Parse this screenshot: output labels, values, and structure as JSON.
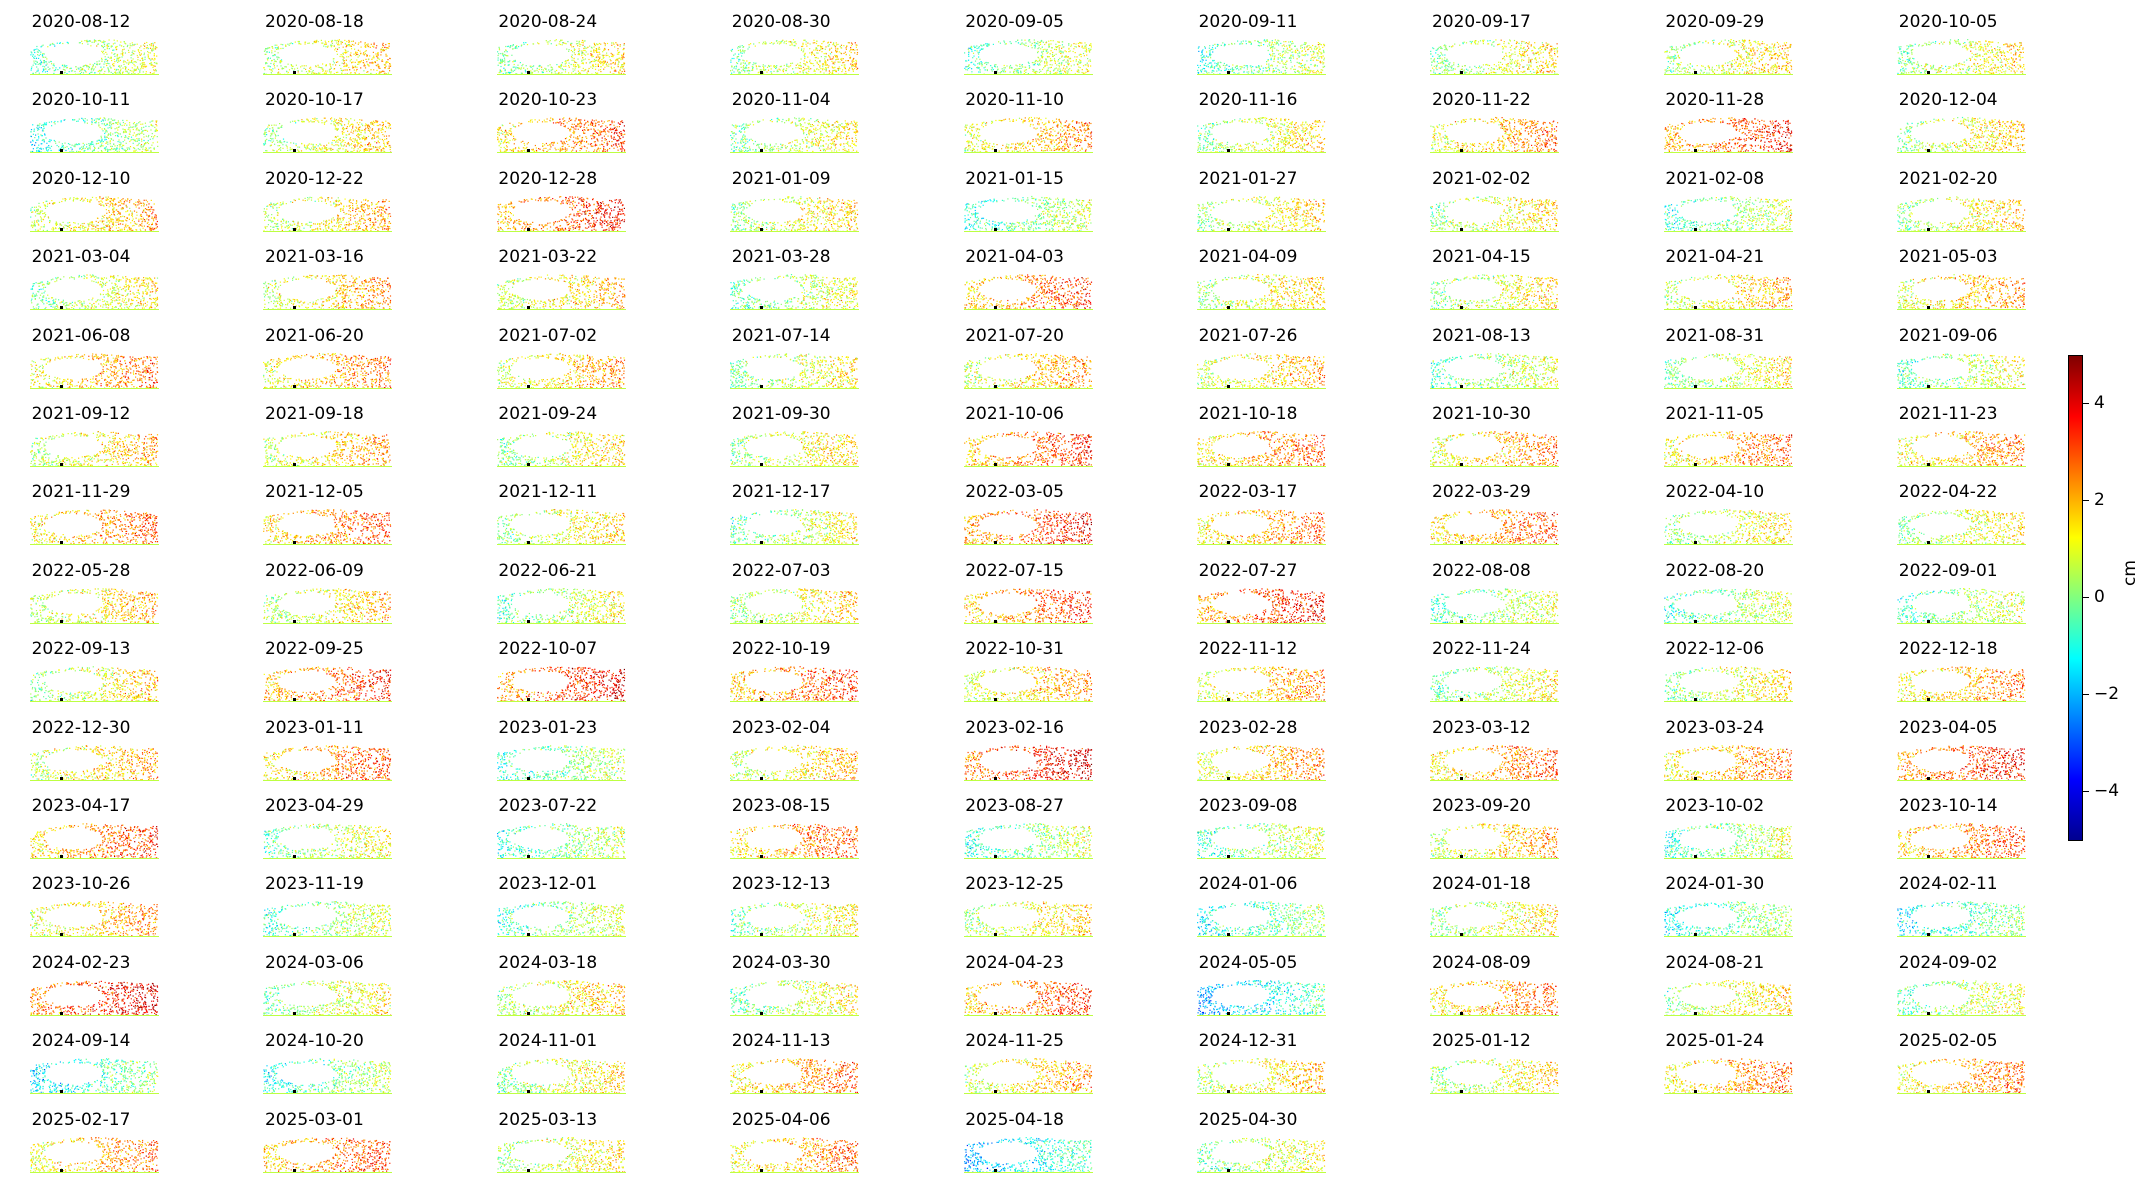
{
  "chart_data": {
    "type": "heatmap",
    "unit": "cm",
    "color_scale": "jet",
    "clim": [
      -5,
      5
    ],
    "colorbar_ticks": [
      4,
      2,
      0,
      -2,
      -4
    ],
    "colorbar_tick_labels": [
      "4",
      "2",
      "0",
      "−2",
      "−4"
    ],
    "colorbar_label": "cm",
    "panels": [
      {
        "date": "2020-08-12",
        "mean_cm": 0.3
      },
      {
        "date": "2020-08-18",
        "mean_cm": 1.2
      },
      {
        "date": "2020-08-24",
        "mean_cm": 0.7
      },
      {
        "date": "2020-08-30",
        "mean_cm": 0.8
      },
      {
        "date": "2020-09-05",
        "mean_cm": 0.3
      },
      {
        "date": "2020-09-11",
        "mean_cm": 0.1
      },
      {
        "date": "2020-09-17",
        "mean_cm": 0.8
      },
      {
        "date": "2020-09-29",
        "mean_cm": 1.0
      },
      {
        "date": "2020-10-05",
        "mean_cm": 0.8
      },
      {
        "date": "2020-10-11",
        "mean_cm": -0.2
      },
      {
        "date": "2020-10-17",
        "mean_cm": 1.1
      },
      {
        "date": "2020-10-23",
        "mean_cm": 2.3
      },
      {
        "date": "2020-11-04",
        "mean_cm": 0.7
      },
      {
        "date": "2020-11-10",
        "mean_cm": 1.7
      },
      {
        "date": "2020-11-16",
        "mean_cm": 0.9
      },
      {
        "date": "2020-11-22",
        "mean_cm": 1.9
      },
      {
        "date": "2020-11-28",
        "mean_cm": 2.8
      },
      {
        "date": "2020-12-04",
        "mean_cm": 1.0
      },
      {
        "date": "2020-12-10",
        "mean_cm": 1.5
      },
      {
        "date": "2020-12-22",
        "mean_cm": 1.4
      },
      {
        "date": "2020-12-28",
        "mean_cm": 2.8
      },
      {
        "date": "2021-01-09",
        "mean_cm": 1.0
      },
      {
        "date": "2021-01-15",
        "mean_cm": 0.0
      },
      {
        "date": "2021-01-27",
        "mean_cm": 1.0
      },
      {
        "date": "2021-02-02",
        "mean_cm": 0.9
      },
      {
        "date": "2021-02-08",
        "mean_cm": 0.1
      },
      {
        "date": "2021-02-20",
        "mean_cm": 1.1
      },
      {
        "date": "2021-03-04",
        "mean_cm": 0.7
      },
      {
        "date": "2021-03-16",
        "mean_cm": 1.6
      },
      {
        "date": "2021-03-22",
        "mean_cm": 1.4
      },
      {
        "date": "2021-03-28",
        "mean_cm": 0.4
      },
      {
        "date": "2021-04-03",
        "mean_cm": 2.5
      },
      {
        "date": "2021-04-09",
        "mean_cm": 1.0
      },
      {
        "date": "2021-04-15",
        "mean_cm": 0.9
      },
      {
        "date": "2021-04-21",
        "mean_cm": 1.4
      },
      {
        "date": "2021-05-03",
        "mean_cm": 1.7
      },
      {
        "date": "2021-06-08",
        "mean_cm": 2.0
      },
      {
        "date": "2021-06-20",
        "mean_cm": 2.0
      },
      {
        "date": "2021-07-02",
        "mean_cm": 1.6
      },
      {
        "date": "2021-07-14",
        "mean_cm": 0.7
      },
      {
        "date": "2021-07-20",
        "mean_cm": 1.6
      },
      {
        "date": "2021-07-26",
        "mean_cm": 1.4
      },
      {
        "date": "2021-08-13",
        "mean_cm": 0.3
      },
      {
        "date": "2021-08-31",
        "mean_cm": 0.7
      },
      {
        "date": "2021-09-06",
        "mean_cm": 0.4
      },
      {
        "date": "2021-09-12",
        "mean_cm": 1.3
      },
      {
        "date": "2021-09-18",
        "mean_cm": 1.5
      },
      {
        "date": "2021-09-24",
        "mean_cm": 0.9
      },
      {
        "date": "2021-09-30",
        "mean_cm": 1.0
      },
      {
        "date": "2021-10-06",
        "mean_cm": 2.6
      },
      {
        "date": "2021-10-18",
        "mean_cm": 2.2
      },
      {
        "date": "2021-10-30",
        "mean_cm": 1.9
      },
      {
        "date": "2021-11-05",
        "mean_cm": 2.1
      },
      {
        "date": "2021-11-23",
        "mean_cm": 1.9
      },
      {
        "date": "2021-11-29",
        "mean_cm": 2.1
      },
      {
        "date": "2021-12-05",
        "mean_cm": 2.3
      },
      {
        "date": "2021-12-11",
        "mean_cm": 1.0
      },
      {
        "date": "2021-12-17",
        "mean_cm": 0.5
      },
      {
        "date": "2022-03-05",
        "mean_cm": 3.0
      },
      {
        "date": "2022-03-17",
        "mean_cm": 2.1
      },
      {
        "date": "2022-03-29",
        "mean_cm": 2.3
      },
      {
        "date": "2022-04-10",
        "mean_cm": 0.8
      },
      {
        "date": "2022-04-22",
        "mean_cm": 0.8
      },
      {
        "date": "2022-05-28",
        "mean_cm": 1.4
      },
      {
        "date": "2022-06-09",
        "mean_cm": 1.2
      },
      {
        "date": "2022-06-21",
        "mean_cm": 0.5
      },
      {
        "date": "2022-07-03",
        "mean_cm": 1.0
      },
      {
        "date": "2022-07-15",
        "mean_cm": 2.6
      },
      {
        "date": "2022-07-27",
        "mean_cm": 3.0
      },
      {
        "date": "2022-08-08",
        "mean_cm": 0.2
      },
      {
        "date": "2022-08-20",
        "mean_cm": 0.1
      },
      {
        "date": "2022-09-01",
        "mean_cm": 0.2
      },
      {
        "date": "2022-09-13",
        "mean_cm": 1.0
      },
      {
        "date": "2022-09-25",
        "mean_cm": 2.7
      },
      {
        "date": "2022-10-07",
        "mean_cm": 3.1
      },
      {
        "date": "2022-10-19",
        "mean_cm": 2.6
      },
      {
        "date": "2022-10-31",
        "mean_cm": 1.6
      },
      {
        "date": "2022-11-12",
        "mean_cm": 1.7
      },
      {
        "date": "2022-11-24",
        "mean_cm": 0.6
      },
      {
        "date": "2022-12-06",
        "mean_cm": 0.9
      },
      {
        "date": "2022-12-18",
        "mean_cm": 1.9
      },
      {
        "date": "2022-12-30",
        "mean_cm": 1.5
      },
      {
        "date": "2023-01-11",
        "mean_cm": 2.3
      },
      {
        "date": "2023-01-23",
        "mean_cm": 0.0
      },
      {
        "date": "2023-02-04",
        "mean_cm": 1.3
      },
      {
        "date": "2023-02-16",
        "mean_cm": 3.4
      },
      {
        "date": "2023-02-28",
        "mean_cm": 1.8
      },
      {
        "date": "2023-03-12",
        "mean_cm": 2.2
      },
      {
        "date": "2023-03-24",
        "mean_cm": 2.0
      },
      {
        "date": "2023-04-05",
        "mean_cm": 3.0
      },
      {
        "date": "2023-04-17",
        "mean_cm": 2.5
      },
      {
        "date": "2023-04-29",
        "mean_cm": 0.5
      },
      {
        "date": "2023-07-22",
        "mean_cm": 0.0
      },
      {
        "date": "2023-08-15",
        "mean_cm": 2.3
      },
      {
        "date": "2023-08-27",
        "mean_cm": 0.0
      },
      {
        "date": "2023-09-08",
        "mean_cm": 0.2
      },
      {
        "date": "2023-09-20",
        "mean_cm": 1.5
      },
      {
        "date": "2023-10-02",
        "mean_cm": 0.1
      },
      {
        "date": "2023-10-14",
        "mean_cm": 2.4
      },
      {
        "date": "2023-10-26",
        "mean_cm": 1.7
      },
      {
        "date": "2023-11-19",
        "mean_cm": 0.1
      },
      {
        "date": "2023-12-01",
        "mean_cm": 0.1
      },
      {
        "date": "2023-12-13",
        "mean_cm": 0.6
      },
      {
        "date": "2023-12-25",
        "mean_cm": 1.1
      },
      {
        "date": "2024-01-06",
        "mean_cm": -0.4
      },
      {
        "date": "2024-01-18",
        "mean_cm": 0.9
      },
      {
        "date": "2024-01-30",
        "mean_cm": -0.3
      },
      {
        "date": "2024-02-11",
        "mean_cm": -0.6
      },
      {
        "date": "2024-02-23",
        "mean_cm": 3.3
      },
      {
        "date": "2024-03-06",
        "mean_cm": 0.7
      },
      {
        "date": "2024-03-18",
        "mean_cm": 1.2
      },
      {
        "date": "2024-03-30",
        "mean_cm": 0.6
      },
      {
        "date": "2024-04-23",
        "mean_cm": 2.6
      },
      {
        "date": "2024-05-05",
        "mean_cm": -1.3
      },
      {
        "date": "2024-08-09",
        "mean_cm": 2.1
      },
      {
        "date": "2024-08-21",
        "mean_cm": 1.0
      },
      {
        "date": "2024-09-02",
        "mean_cm": 0.4
      },
      {
        "date": "2024-09-14",
        "mean_cm": -0.6
      },
      {
        "date": "2024-10-20",
        "mean_cm": -0.2
      },
      {
        "date": "2024-11-01",
        "mean_cm": 0.8
      },
      {
        "date": "2024-11-13",
        "mean_cm": 2.2
      },
      {
        "date": "2024-11-25",
        "mean_cm": 1.5
      },
      {
        "date": "2024-12-31",
        "mean_cm": 1.3
      },
      {
        "date": "2025-01-12",
        "mean_cm": 0.9
      },
      {
        "date": "2025-01-24",
        "mean_cm": 2.1
      },
      {
        "date": "2025-02-05",
        "mean_cm": 2.0
      },
      {
        "date": "2025-02-17",
        "mean_cm": 2.0
      },
      {
        "date": "2025-03-01",
        "mean_cm": 2.4
      },
      {
        "date": "2025-03-13",
        "mean_cm": 0.9
      },
      {
        "date": "2025-04-06",
        "mean_cm": 2.0
      },
      {
        "date": "2025-04-18",
        "mean_cm": -1.3
      },
      {
        "date": "2025-04-30",
        "mean_cm": 0.5
      }
    ]
  }
}
